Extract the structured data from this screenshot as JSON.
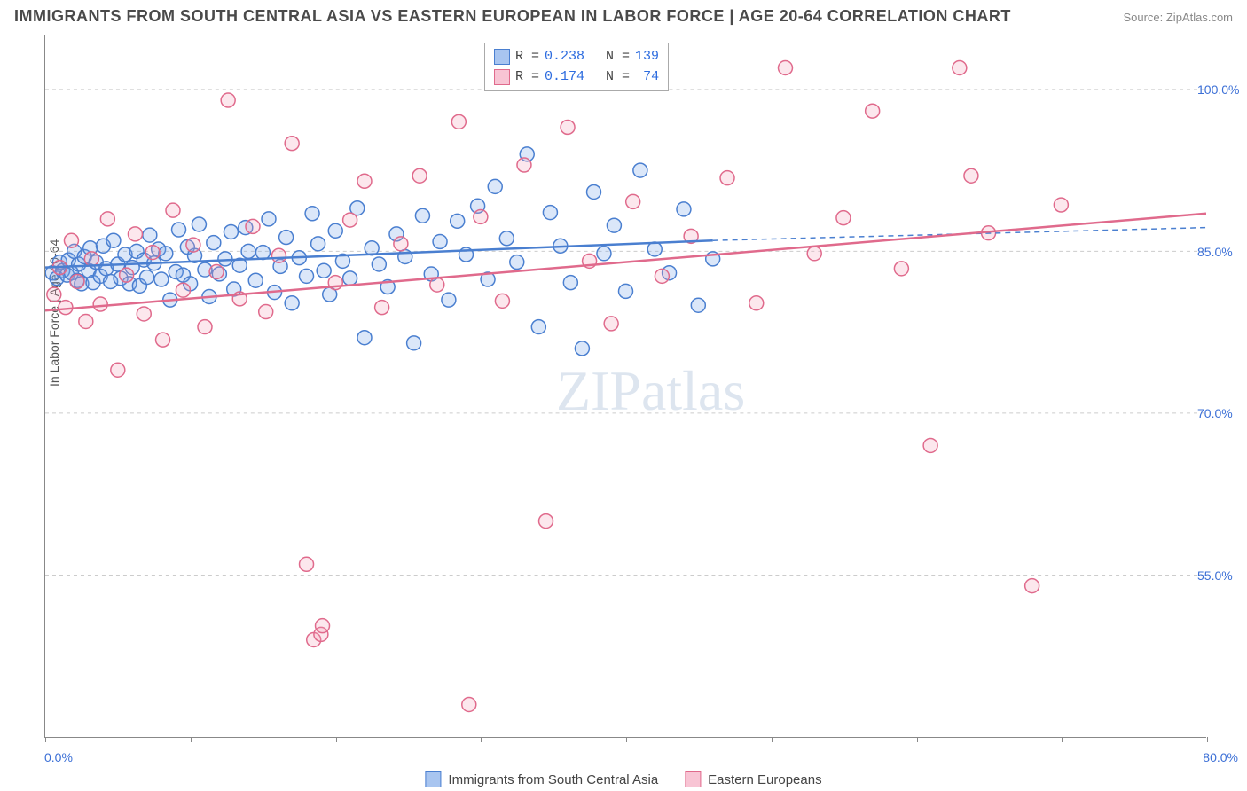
{
  "title": "IMMIGRANTS FROM SOUTH CENTRAL ASIA VS EASTERN EUROPEAN IN LABOR FORCE | AGE 20-64 CORRELATION CHART",
  "source_label": "Source: ZipAtlas.com",
  "ylabel": "In Labor Force | Age 20-64",
  "watermark": "ZIPatlas",
  "chart": {
    "type": "scatter",
    "xlim": [
      0,
      80
    ],
    "ylim": [
      40,
      105
    ],
    "xtick_positions": [
      0,
      10,
      20,
      30,
      40,
      50,
      60,
      70,
      80
    ],
    "xtick_labels_shown": {
      "0": "0.0%",
      "80": "80.0%"
    },
    "ytick_positions": [
      55,
      70,
      85,
      100
    ],
    "ytick_labels": [
      "55.0%",
      "70.0%",
      "85.0%",
      "100.0%"
    ],
    "grid_color": "#cccccc",
    "background_color": "#ffffff",
    "axis_color": "#888888",
    "tick_label_color": "#3b6fd6",
    "marker_radius": 8,
    "marker_stroke_width": 1.5,
    "marker_fill_opacity": 0.25,
    "series": [
      {
        "name": "Immigrants from South Central Asia",
        "color": "#6fa0e8",
        "stroke": "#4a7fd0",
        "R": 0.238,
        "N": 139,
        "regression": {
          "x1": 0,
          "y1": 83.5,
          "x2": 46,
          "y2": 86.0,
          "dash_x2": 80,
          "dash_y2": 87.2
        },
        "points": [
          [
            0.5,
            83
          ],
          [
            0.8,
            82.5
          ],
          [
            1,
            84
          ],
          [
            1.2,
            83.2
          ],
          [
            1.5,
            82.8
          ],
          [
            1.6,
            84.2
          ],
          [
            1.8,
            83
          ],
          [
            2,
            85
          ],
          [
            2.2,
            82.3
          ],
          [
            2.3,
            83.8
          ],
          [
            2.5,
            82
          ],
          [
            2.7,
            84.5
          ],
          [
            3,
            83.2
          ],
          [
            3.1,
            85.3
          ],
          [
            3.3,
            82.1
          ],
          [
            3.5,
            84
          ],
          [
            3.8,
            82.7
          ],
          [
            4,
            85.5
          ],
          [
            4.2,
            83.4
          ],
          [
            4.5,
            82.2
          ],
          [
            4.7,
            86
          ],
          [
            5,
            83.8
          ],
          [
            5.2,
            82.5
          ],
          [
            5.5,
            84.7
          ],
          [
            5.8,
            82
          ],
          [
            6,
            83.5
          ],
          [
            6.3,
            85
          ],
          [
            6.5,
            81.8
          ],
          [
            6.8,
            84.2
          ],
          [
            7,
            82.6
          ],
          [
            7.2,
            86.5
          ],
          [
            7.5,
            83.9
          ],
          [
            7.8,
            85.2
          ],
          [
            8,
            82.4
          ],
          [
            8.3,
            84.8
          ],
          [
            8.6,
            80.5
          ],
          [
            9,
            83.1
          ],
          [
            9.2,
            87
          ],
          [
            9.5,
            82.8
          ],
          [
            9.8,
            85.4
          ],
          [
            10,
            82
          ],
          [
            10.3,
            84.6
          ],
          [
            10.6,
            87.5
          ],
          [
            11,
            83.3
          ],
          [
            11.3,
            80.8
          ],
          [
            11.6,
            85.8
          ],
          [
            12,
            82.9
          ],
          [
            12.4,
            84.3
          ],
          [
            12.8,
            86.8
          ],
          [
            13,
            81.5
          ],
          [
            13.4,
            83.7
          ],
          [
            13.8,
            87.2
          ],
          [
            14,
            85
          ],
          [
            14.5,
            82.3
          ],
          [
            15,
            84.9
          ],
          [
            15.4,
            88
          ],
          [
            15.8,
            81.2
          ],
          [
            16.2,
            83.6
          ],
          [
            16.6,
            86.3
          ],
          [
            17,
            80.2
          ],
          [
            17.5,
            84.4
          ],
          [
            18,
            82.7
          ],
          [
            18.4,
            88.5
          ],
          [
            18.8,
            85.7
          ],
          [
            19.2,
            83.2
          ],
          [
            19.6,
            81
          ],
          [
            20,
            86.9
          ],
          [
            20.5,
            84.1
          ],
          [
            21,
            82.5
          ],
          [
            21.5,
            89
          ],
          [
            22,
            77
          ],
          [
            22.5,
            85.3
          ],
          [
            23,
            83.8
          ],
          [
            23.6,
            81.7
          ],
          [
            24.2,
            86.6
          ],
          [
            24.8,
            84.5
          ],
          [
            25.4,
            76.5
          ],
          [
            26,
            88.3
          ],
          [
            26.6,
            82.9
          ],
          [
            27.2,
            85.9
          ],
          [
            27.8,
            80.5
          ],
          [
            28.4,
            87.8
          ],
          [
            29,
            84.7
          ],
          [
            29.8,
            89.2
          ],
          [
            30.5,
            82.4
          ],
          [
            31,
            91
          ],
          [
            31.8,
            86.2
          ],
          [
            32.5,
            84
          ],
          [
            33.2,
            94
          ],
          [
            34,
            78
          ],
          [
            34.8,
            88.6
          ],
          [
            35.5,
            85.5
          ],
          [
            36.2,
            82.1
          ],
          [
            37,
            76
          ],
          [
            37.8,
            90.5
          ],
          [
            38.5,
            84.8
          ],
          [
            39.2,
            87.4
          ],
          [
            40,
            81.3
          ],
          [
            41,
            92.5
          ],
          [
            42,
            85.2
          ],
          [
            43,
            83
          ],
          [
            44,
            88.9
          ],
          [
            45,
            80
          ],
          [
            46,
            84.3
          ]
        ]
      },
      {
        "name": "Eastern Europeans",
        "color": "#f2a0b8",
        "stroke": "#e06a8c",
        "R": 0.174,
        "N": 74,
        "regression": {
          "x1": 0,
          "y1": 79.5,
          "x2": 80,
          "y2": 88.5
        },
        "points": [
          [
            0.6,
            81
          ],
          [
            1,
            83.5
          ],
          [
            1.4,
            79.8
          ],
          [
            1.8,
            86
          ],
          [
            2.2,
            82.2
          ],
          [
            2.8,
            78.5
          ],
          [
            3.2,
            84.3
          ],
          [
            3.8,
            80.1
          ],
          [
            4.3,
            88
          ],
          [
            5,
            74
          ],
          [
            5.6,
            82.8
          ],
          [
            6.2,
            86.6
          ],
          [
            6.8,
            79.2
          ],
          [
            7.4,
            84.9
          ],
          [
            8.1,
            76.8
          ],
          [
            8.8,
            88.8
          ],
          [
            9.5,
            81.4
          ],
          [
            10.2,
            85.6
          ],
          [
            11,
            78
          ],
          [
            11.8,
            83.1
          ],
          [
            12.6,
            99
          ],
          [
            13.4,
            80.6
          ],
          [
            14.3,
            87.3
          ],
          [
            15.2,
            79.4
          ],
          [
            16.1,
            84.6
          ],
          [
            17,
            95
          ],
          [
            18,
            56
          ],
          [
            18.5,
            49
          ],
          [
            19,
            49.5
          ],
          [
            19.1,
            50.3
          ],
          [
            20,
            82.1
          ],
          [
            21,
            87.9
          ],
          [
            22,
            91.5
          ],
          [
            23.2,
            79.8
          ],
          [
            24.5,
            85.7
          ],
          [
            25.8,
            92
          ],
          [
            27,
            81.9
          ],
          [
            28.5,
            97
          ],
          [
            29.2,
            43
          ],
          [
            30,
            88.2
          ],
          [
            31.5,
            80.4
          ],
          [
            33,
            93
          ],
          [
            34.5,
            60
          ],
          [
            36,
            96.5
          ],
          [
            37.5,
            84.1
          ],
          [
            39,
            78.3
          ],
          [
            40.5,
            89.6
          ],
          [
            42.5,
            82.7
          ],
          [
            44.5,
            86.4
          ],
          [
            47,
            91.8
          ],
          [
            49,
            80.2
          ],
          [
            51,
            102
          ],
          [
            53,
            84.8
          ],
          [
            55,
            88.1
          ],
          [
            57,
            98
          ],
          [
            59,
            83.4
          ],
          [
            61,
            67
          ],
          [
            63,
            102
          ],
          [
            63.8,
            92
          ],
          [
            65,
            86.7
          ],
          [
            68,
            54
          ],
          [
            70,
            89.3
          ]
        ]
      }
    ]
  },
  "legend": {
    "blue_swatch_fill": "#a8c5f0",
    "blue_swatch_stroke": "#4a7fd0",
    "pink_swatch_fill": "#f8c4d4",
    "pink_swatch_stroke": "#e06a8c"
  }
}
